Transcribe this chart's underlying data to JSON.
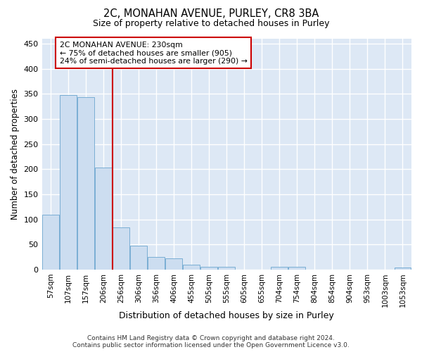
{
  "title1": "2C, MONAHAN AVENUE, PURLEY, CR8 3BA",
  "title2": "Size of property relative to detached houses in Purley",
  "xlabel": "Distribution of detached houses by size in Purley",
  "ylabel": "Number of detached properties",
  "bar_labels": [
    "57sqm",
    "107sqm",
    "157sqm",
    "206sqm",
    "256sqm",
    "306sqm",
    "356sqm",
    "406sqm",
    "455sqm",
    "505sqm",
    "555sqm",
    "605sqm",
    "655sqm",
    "704sqm",
    "754sqm",
    "804sqm",
    "854sqm",
    "904sqm",
    "953sqm",
    "1003sqm",
    "1053sqm"
  ],
  "bar_values": [
    110,
    348,
    343,
    203,
    84,
    47,
    25,
    22,
    10,
    6,
    6,
    0,
    0,
    6,
    6,
    0,
    0,
    0,
    0,
    0,
    4
  ],
  "bar_color": "#ccddf0",
  "bar_edge_color": "#7aaed4",
  "vline_x": 3.5,
  "vline_color": "#cc0000",
  "annotation_line1": "2C MONAHAN AVENUE: 230sqm",
  "annotation_line2": "← 75% of detached houses are smaller (905)",
  "annotation_line3": "24% of semi-detached houses are larger (290) →",
  "annotation_box_color": "white",
  "annotation_box_edge": "#cc0000",
  "ylim": [
    0,
    460
  ],
  "yticks": [
    0,
    50,
    100,
    150,
    200,
    250,
    300,
    350,
    400,
    450
  ],
  "background_color": "#dde8f5",
  "grid_color": "#ffffff",
  "footer": "Contains HM Land Registry data © Crown copyright and database right 2024.\nContains public sector information licensed under the Open Government Licence v3.0."
}
